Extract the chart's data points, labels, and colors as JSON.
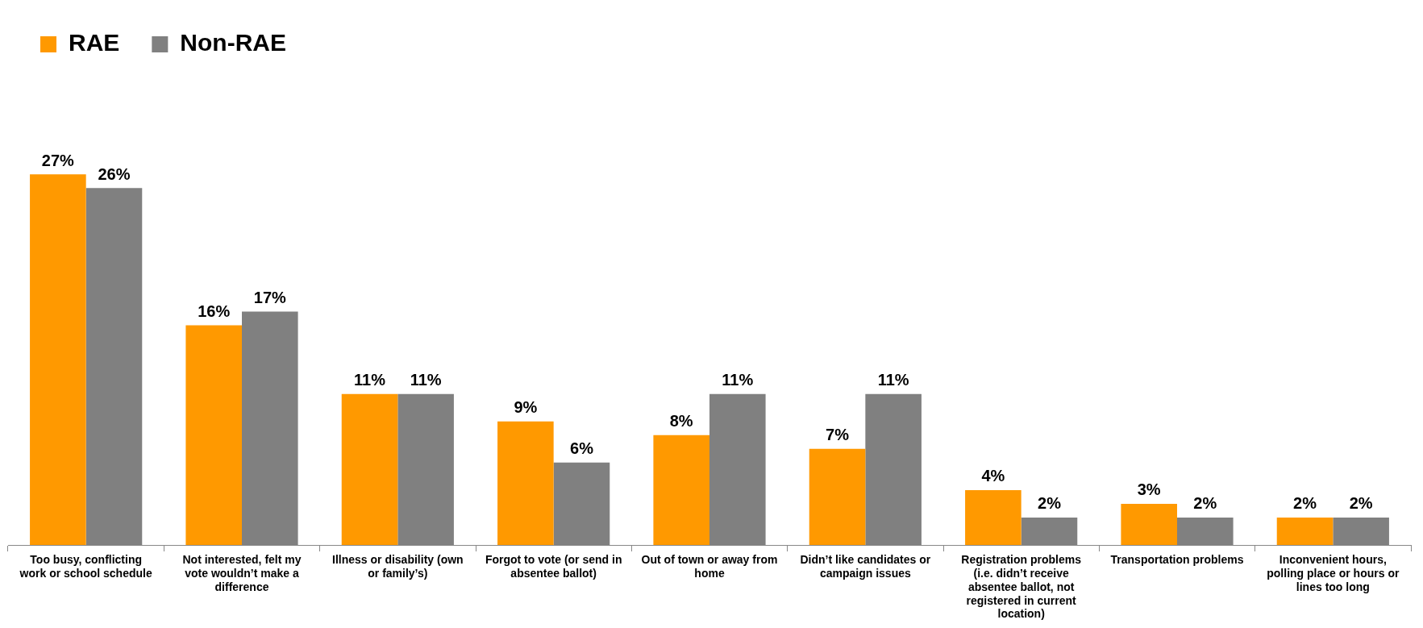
{
  "chart_data": {
    "type": "bar",
    "categories": [
      "Too busy, conflicting work or school schedule",
      "Not interested, felt my vote wouldn’t make a difference",
      "Illness or disability (own or family’s)",
      "Forgot to vote (or send in absentee ballot)",
      "Out of town or away from home",
      "Didn’t like candidates or campaign issues",
      "Registration problems (i.e. didn’t receive absentee ballot, not registered in current location)",
      "Transportation problems",
      "Inconvenient hours, polling place or hours or lines too long"
    ],
    "series": [
      {
        "name": "RAE",
        "color": "#ff9900",
        "values": [
          27,
          16,
          11,
          9,
          8,
          7,
          4,
          3,
          2
        ],
        "value_labels": [
          "27%",
          "16%",
          "11%",
          "9%",
          "8%",
          "7%",
          "4%",
          "3%",
          "2%"
        ]
      },
      {
        "name": "Non-RAE",
        "color": "#808080",
        "values": [
          26,
          17,
          11,
          6,
          11,
          11,
          2,
          2,
          2
        ],
        "value_labels": [
          "26%",
          "17%",
          "11%",
          "6%",
          "11%",
          "11%",
          "2%",
          "2%",
          "2%"
        ]
      }
    ],
    "legend": "top left",
    "grid": false
  }
}
